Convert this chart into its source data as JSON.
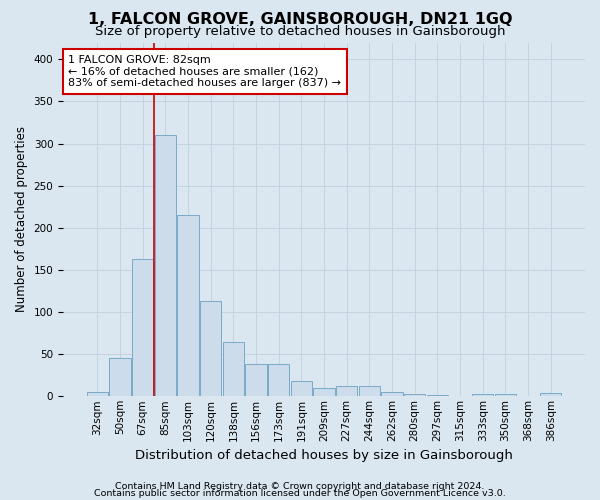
{
  "title": "1, FALCON GROVE, GAINSBOROUGH, DN21 1GQ",
  "subtitle": "Size of property relative to detached houses in Gainsborough",
  "xlabel": "Distribution of detached houses by size in Gainsborough",
  "ylabel": "Number of detached properties",
  "footnote1": "Contains HM Land Registry data © Crown copyright and database right 2024.",
  "footnote2": "Contains public sector information licensed under the Open Government Licence v3.0.",
  "annotation_line1": "1 FALCON GROVE: 82sqm",
  "annotation_line2": "← 16% of detached houses are smaller (162)",
  "annotation_line3": "83% of semi-detached houses are larger (837) →",
  "categories": [
    "32sqm",
    "50sqm",
    "67sqm",
    "85sqm",
    "103sqm",
    "120sqm",
    "138sqm",
    "156sqm",
    "173sqm",
    "191sqm",
    "209sqm",
    "227sqm",
    "244sqm",
    "262sqm",
    "280sqm",
    "297sqm",
    "315sqm",
    "333sqm",
    "350sqm",
    "368sqm",
    "386sqm"
  ],
  "bar_heights": [
    5,
    45,
    163,
    310,
    215,
    113,
    65,
    38,
    38,
    18,
    10,
    12,
    12,
    5,
    3,
    1,
    0,
    3,
    3,
    0,
    4
  ],
  "bar_color": "#ccdcea",
  "bar_edge_color": "#7aaac8",
  "bar_edge_width": 0.7,
  "vline_color": "#cc0000",
  "annotation_box_edge_color": "#cc0000",
  "ylim": [
    0,
    420
  ],
  "yticks": [
    0,
    50,
    100,
    150,
    200,
    250,
    300,
    350,
    400
  ],
  "grid_color": "#bfd0df",
  "background_color": "#dae7f0",
  "title_fontsize": 11.5,
  "subtitle_fontsize": 9.5,
  "ylabel_fontsize": 8.5,
  "xlabel_fontsize": 9.5,
  "tick_fontsize": 7.5,
  "annotation_fontsize": 8,
  "footnote_fontsize": 6.8
}
